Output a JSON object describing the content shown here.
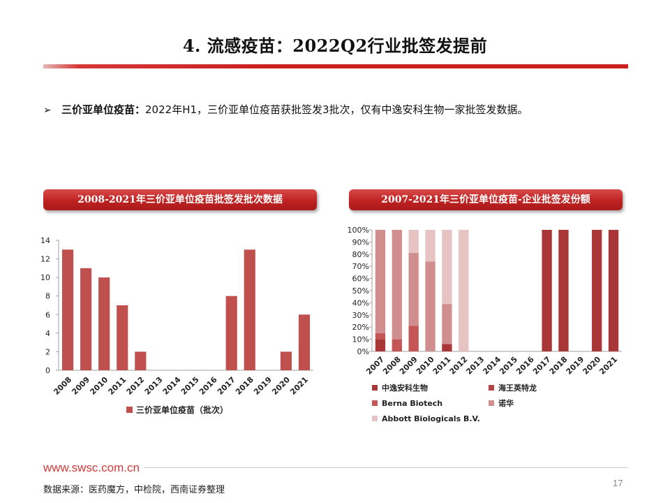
{
  "header": {
    "title": "4. 流感疫苗：2022Q2行业批签发提前"
  },
  "bullet": {
    "arrow": "➢",
    "lead": "三价亚单位疫苗：",
    "text": "2022年H1，三价亚单位疫苗获批签发3批次，仅有中逸安科生物一家批签发数据。"
  },
  "left_panel": {
    "heading": "2008-2021年三价亚单位疫苗批签发批次数据"
  },
  "right_panel": {
    "heading": "2007-2021年三价亚单位疫苗-企业批签发份额"
  },
  "colors": {
    "brand_red": "#c81e1e",
    "bar_left": "#c0504d",
    "s1": "#a93737",
    "s2": "#b64444",
    "s3": "#c55656",
    "s4": "#d18e8e",
    "s5": "#e7c3c3"
  },
  "chart_data": [
    {
      "type": "bar",
      "categories": [
        "2008",
        "2009",
        "2010",
        "2011",
        "2012",
        "2013",
        "2014",
        "2015",
        "2016",
        "2017",
        "2018",
        "2019",
        "2020",
        "2021"
      ],
      "series": [
        {
          "name": "三价亚单位疫苗（批次）",
          "values": [
            13,
            11,
            10,
            7,
            2,
            0,
            0,
            0,
            0,
            8,
            13,
            0,
            2,
            6
          ]
        }
      ],
      "ylim": [
        0,
        14
      ],
      "yticks": [
        "0",
        "2",
        "4",
        "6",
        "8",
        "10",
        "12",
        "14"
      ],
      "legend": "bottom"
    },
    {
      "type": "bar",
      "stacked": true,
      "categories": [
        "2007",
        "2008",
        "2009",
        "2010",
        "2011",
        "2012",
        "2013",
        "2014",
        "2015",
        "2016",
        "2017",
        "2018",
        "2019",
        "2020",
        "2021"
      ],
      "series": [
        {
          "name": "中逸安科生物",
          "values": [
            10,
            0,
            0,
            0,
            6,
            0,
            0,
            0,
            0,
            0,
            100,
            100,
            0,
            100,
            100
          ]
        },
        {
          "name": "海王英特龙",
          "values": [
            0,
            0,
            0,
            0,
            0,
            0,
            0,
            0,
            0,
            0,
            0,
            0,
            0,
            0,
            0
          ]
        },
        {
          "name": "Berna Biotech",
          "values": [
            5,
            10,
            21,
            0,
            0,
            0,
            0,
            0,
            0,
            0,
            0,
            0,
            0,
            0,
            0
          ]
        },
        {
          "name": "诺华",
          "values": [
            85,
            90,
            60,
            74,
            33,
            0,
            0,
            0,
            0,
            0,
            0,
            0,
            0,
            0,
            0
          ]
        },
        {
          "name": "Abbott Biologicals B.V.",
          "values": [
            0,
            0,
            19,
            26,
            61,
            100,
            0,
            0,
            0,
            0,
            0,
            0,
            0,
            0,
            0
          ]
        }
      ],
      "ylim": [
        0,
        100
      ],
      "yticks": [
        "0%",
        "10%",
        "20%",
        "30%",
        "40%",
        "50%",
        "60%",
        "70%",
        "80%",
        "90%",
        "100%"
      ],
      "legend": "bottom"
    }
  ],
  "footer": {
    "url": "www.swsc.com.cn",
    "source": "数据来源：医药魔方，中检院，西南证券整理",
    "page": "17"
  }
}
